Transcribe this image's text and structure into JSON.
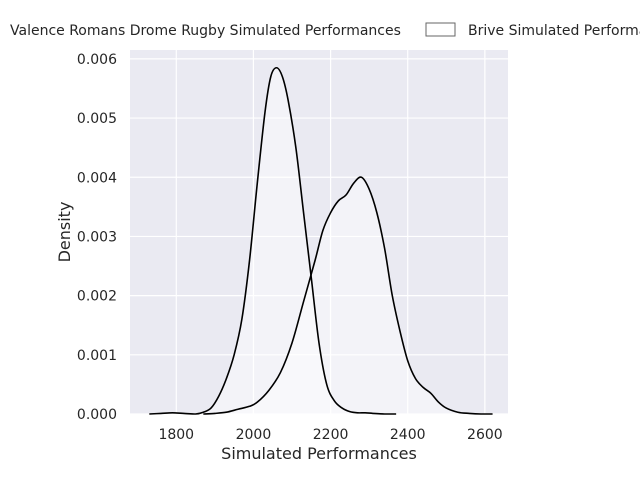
{
  "chart_data": {
    "type": "area",
    "xlabel": "Simulated Performances",
    "ylabel": "Density",
    "xlim": [
      1680,
      2660
    ],
    "ylim": [
      0,
      0.00615
    ],
    "x_ticks": [
      1800,
      2000,
      2200,
      2400,
      2600
    ],
    "x_tick_labels": [
      "1800",
      "2000",
      "2200",
      "2400",
      "2600"
    ],
    "y_ticks": [
      0,
      0.001,
      0.002,
      0.003,
      0.004,
      0.005,
      0.006
    ],
    "y_tick_labels": [
      "0.000",
      "0.001",
      "0.002",
      "0.003",
      "0.004",
      "0.005",
      "0.006"
    ],
    "grid": true,
    "legend_position": "top",
    "series": [
      {
        "name": "Valence Romans Drome Rugby Simulated Performances",
        "x": [
          1730,
          1760,
          1790,
          1820,
          1850,
          1870,
          1890,
          1910,
          1930,
          1950,
          1970,
          1990,
          2010,
          2030,
          2045,
          2060,
          2075,
          2090,
          2110,
          2130,
          2150,
          2170,
          2190,
          2210,
          2230,
          2250,
          2270,
          2290,
          2310,
          2340,
          2370
        ],
        "y": [
          0,
          1e-05,
          2e-05,
          1e-05,
          0,
          3e-05,
          0.0001,
          0.0003,
          0.0006,
          0.001,
          0.0016,
          0.0026,
          0.0039,
          0.0051,
          0.0057,
          0.00585,
          0.0057,
          0.0053,
          0.0045,
          0.0034,
          0.0023,
          0.0012,
          0.0005,
          0.00022,
          0.0001,
          4e-05,
          2e-05,
          2e-05,
          1e-05,
          0,
          0
        ]
      },
      {
        "name": "Brive Simulated Performances",
        "x": [
          1870,
          1900,
          1930,
          1960,
          1990,
          2010,
          2040,
          2070,
          2100,
          2130,
          2160,
          2180,
          2200,
          2220,
          2240,
          2260,
          2280,
          2300,
          2320,
          2340,
          2360,
          2380,
          2400,
          2420,
          2440,
          2460,
          2480,
          2500,
          2530,
          2560,
          2590,
          2620
        ],
        "y": [
          0,
          1e-05,
          3e-05,
          8e-05,
          0.00013,
          0.0002,
          0.0004,
          0.0007,
          0.0012,
          0.0019,
          0.0026,
          0.0031,
          0.0034,
          0.0036,
          0.0037,
          0.0039,
          0.004,
          0.0038,
          0.0034,
          0.0028,
          0.002,
          0.0014,
          0.0009,
          0.0006,
          0.00045,
          0.00035,
          0.0002,
          0.0001,
          3e-05,
          1e-05,
          0,
          0
        ]
      }
    ]
  },
  "colors": {
    "plot_background": "#eaeaf2",
    "grid": "#ffffff",
    "line": "#000000",
    "fill": "rgba(255,255,255,0.45)",
    "legend_box_edge": "#666666"
  }
}
